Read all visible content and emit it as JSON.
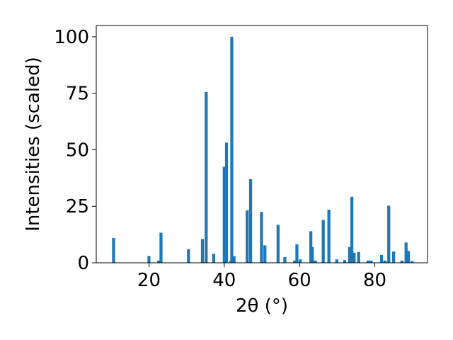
{
  "chart_data": {
    "type": "bar",
    "xlabel": "2θ (°)",
    "ylabel": "Intensities (scaled)",
    "xlim": [
      6,
      94
    ],
    "ylim": [
      0,
      105
    ],
    "x_ticks": [
      20,
      40,
      60,
      80
    ],
    "y_ticks": [
      0,
      25,
      50,
      75,
      100
    ],
    "grid": false,
    "legend": "none",
    "bar_color": "#1f77b4",
    "bar_width": 0.8,
    "x": [
      10.6,
      20.0,
      22.6,
      23.2,
      30.5,
      34.2,
      35.2,
      37.2,
      40.0,
      40.6,
      41.8,
      42.0,
      42.6,
      46.1,
      47.0,
      49.9,
      50.8,
      54.3,
      56.1,
      58.7,
      59.3,
      60.2,
      63.0,
      63.4,
      64.2,
      66.3,
      67.8,
      69.9,
      72.0,
      73.3,
      73.9,
      74.5,
      75.7,
      78.2,
      79.0,
      81.8,
      82.7,
      83.7,
      85.0,
      87.2,
      88.3,
      88.9,
      89.9
    ],
    "values": [
      11,
      3,
      1,
      13.3,
      6,
      10.5,
      75.6,
      4,
      42.5,
      53.2,
      1,
      100,
      3,
      23.2,
      37,
      22.5,
      7.7,
      16.8,
      2.5,
      1,
      8.2,
      1.5,
      14,
      7,
      1,
      19,
      23.5,
      1.5,
      1.2,
      7,
      29.2,
      4.5,
      4.8,
      1,
      1,
      3.5,
      1,
      25.3,
      5,
      1,
      9,
      5.2,
      0.8
    ]
  }
}
